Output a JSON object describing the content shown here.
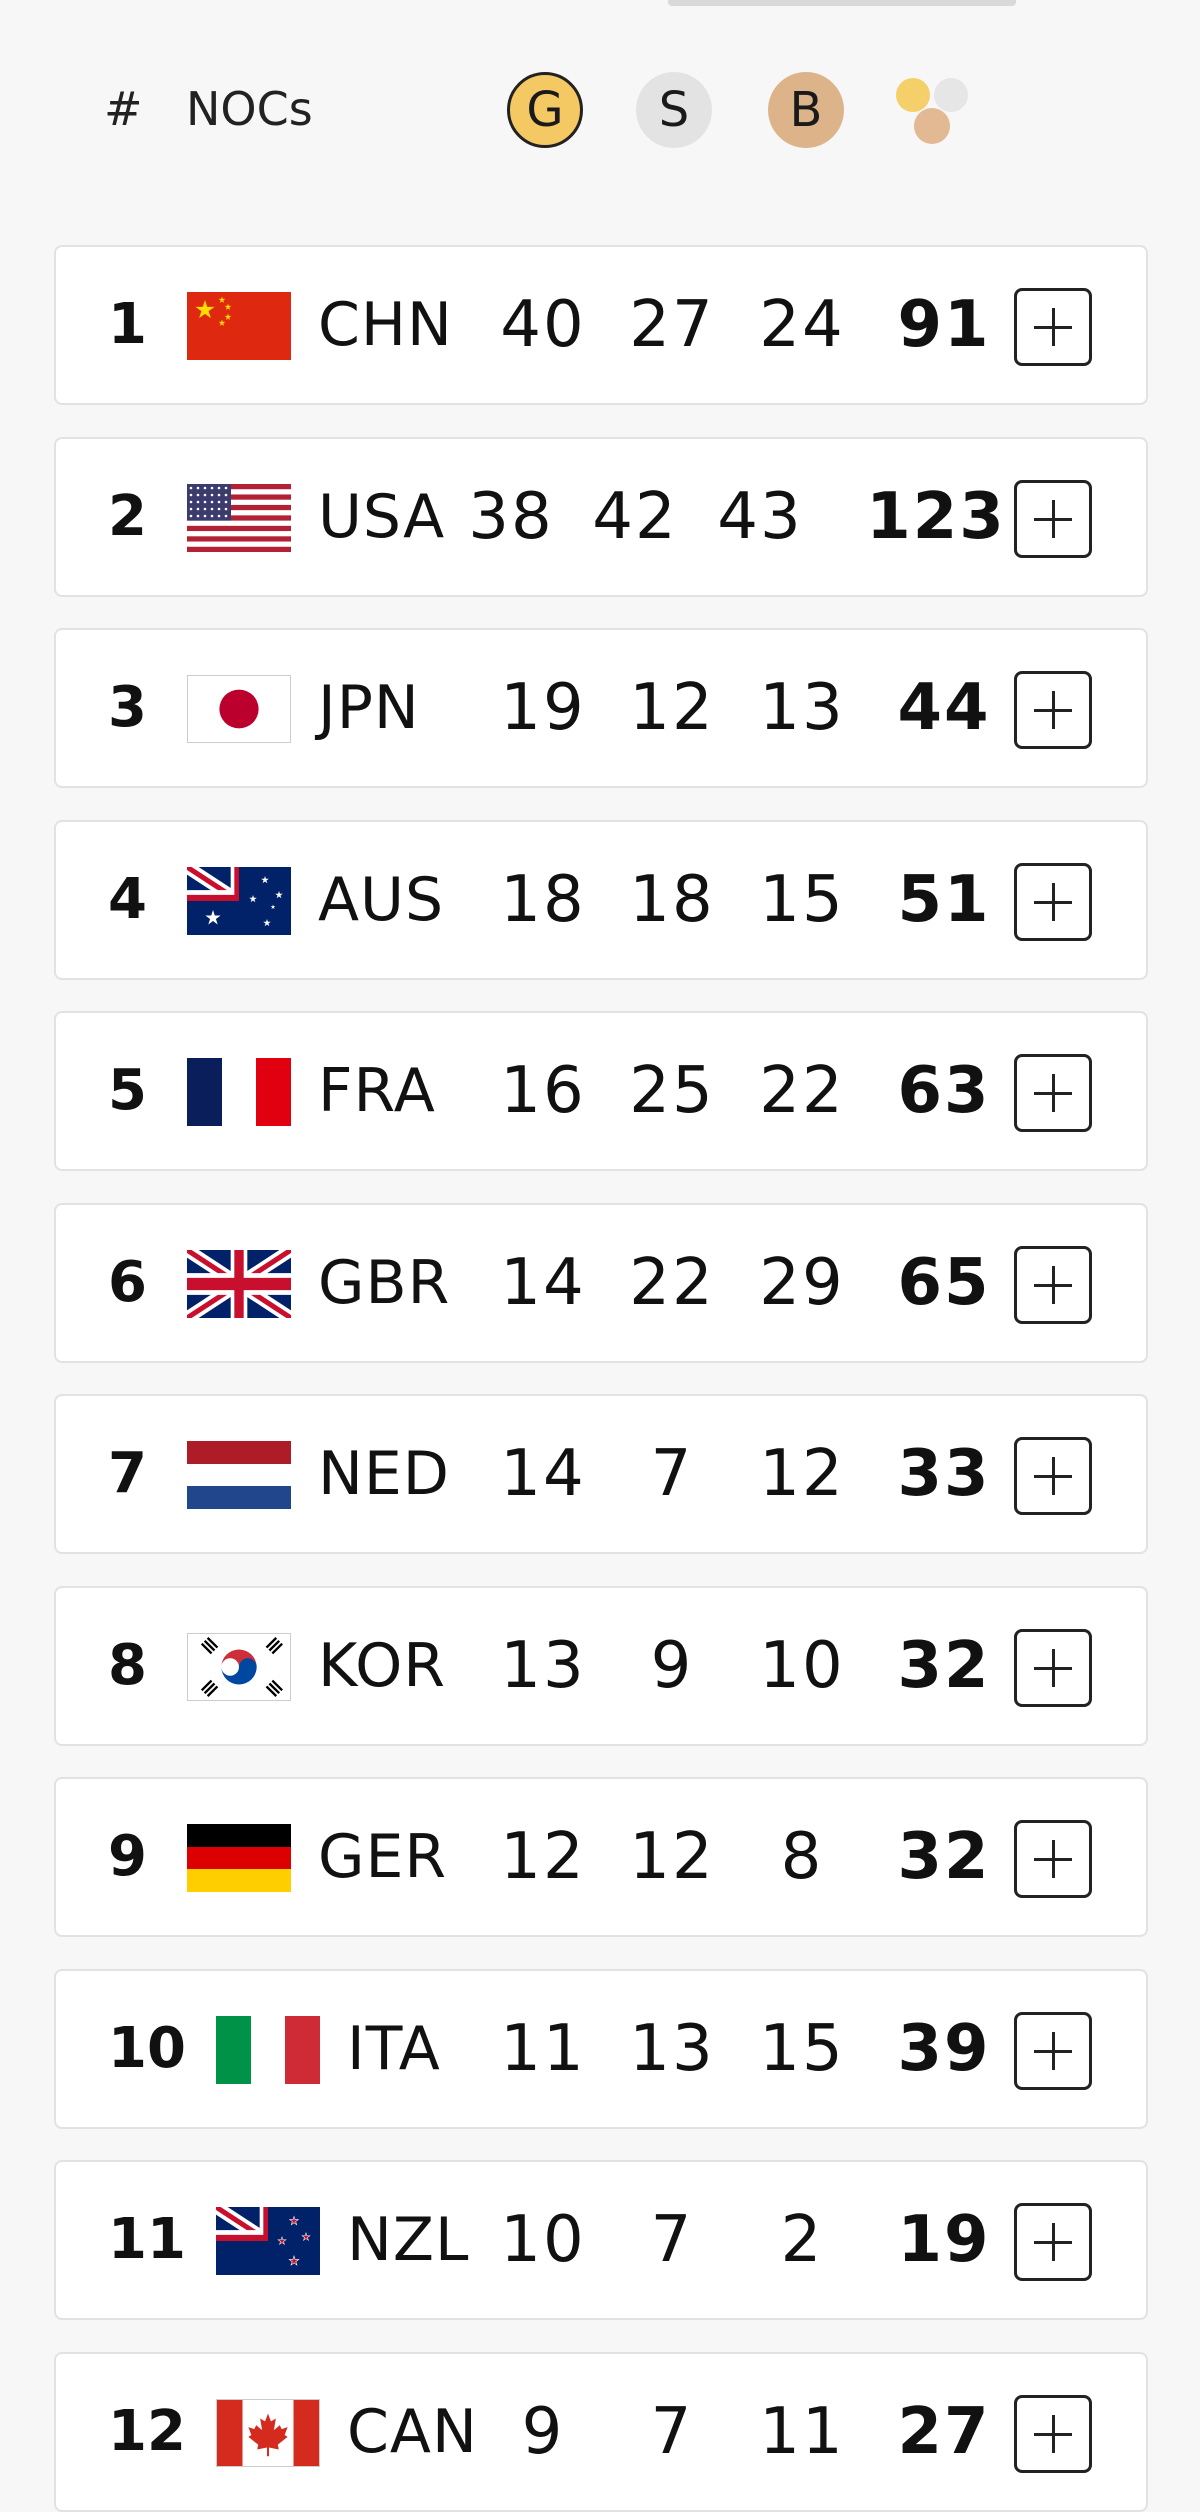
{
  "header": {
    "rank_label": "#",
    "noc_label": "NOCs",
    "gold_label": "G",
    "silver_label": "S",
    "bronze_label": "B",
    "total_icon": "medals-total-icon"
  },
  "colors": {
    "gold": "#f4c862",
    "silver": "#e3e3e3",
    "bronze": "#ddb48a"
  },
  "rows": [
    {
      "rank": "1",
      "noc": "CHN",
      "gold": "40",
      "silver": "27",
      "bronze": "24",
      "total": "91",
      "flag": "china-flag"
    },
    {
      "rank": "2",
      "noc": "USA",
      "gold": "38",
      "silver": "42",
      "bronze": "43",
      "total": "123",
      "flag": "usa-flag"
    },
    {
      "rank": "3",
      "noc": "JPN",
      "gold": "19",
      "silver": "12",
      "bronze": "13",
      "total": "44",
      "flag": "japan-flag"
    },
    {
      "rank": "4",
      "noc": "AUS",
      "gold": "18",
      "silver": "18",
      "bronze": "15",
      "total": "51",
      "flag": "australia-flag"
    },
    {
      "rank": "5",
      "noc": "FRA",
      "gold": "16",
      "silver": "25",
      "bronze": "22",
      "total": "63",
      "flag": "france-flag"
    },
    {
      "rank": "6",
      "noc": "GBR",
      "gold": "14",
      "silver": "22",
      "bronze": "29",
      "total": "65",
      "flag": "great-britain-flag"
    },
    {
      "rank": "7",
      "noc": "NED",
      "gold": "14",
      "silver": "7",
      "bronze": "12",
      "total": "33",
      "flag": "netherlands-flag"
    },
    {
      "rank": "8",
      "noc": "KOR",
      "gold": "13",
      "silver": "9",
      "bronze": "10",
      "total": "32",
      "flag": "south-korea-flag"
    },
    {
      "rank": "9",
      "noc": "GER",
      "gold": "12",
      "silver": "12",
      "bronze": "8",
      "total": "32",
      "flag": "germany-flag"
    },
    {
      "rank": "10",
      "noc": "ITA",
      "gold": "11",
      "silver": "13",
      "bronze": "15",
      "total": "39",
      "flag": "italy-flag"
    },
    {
      "rank": "11",
      "noc": "NZL",
      "gold": "10",
      "silver": "7",
      "bronze": "2",
      "total": "19",
      "flag": "new-zealand-flag"
    },
    {
      "rank": "12",
      "noc": "CAN",
      "gold": "9",
      "silver": "7",
      "bronze": "11",
      "total": "27",
      "flag": "canada-flag"
    }
  ]
}
